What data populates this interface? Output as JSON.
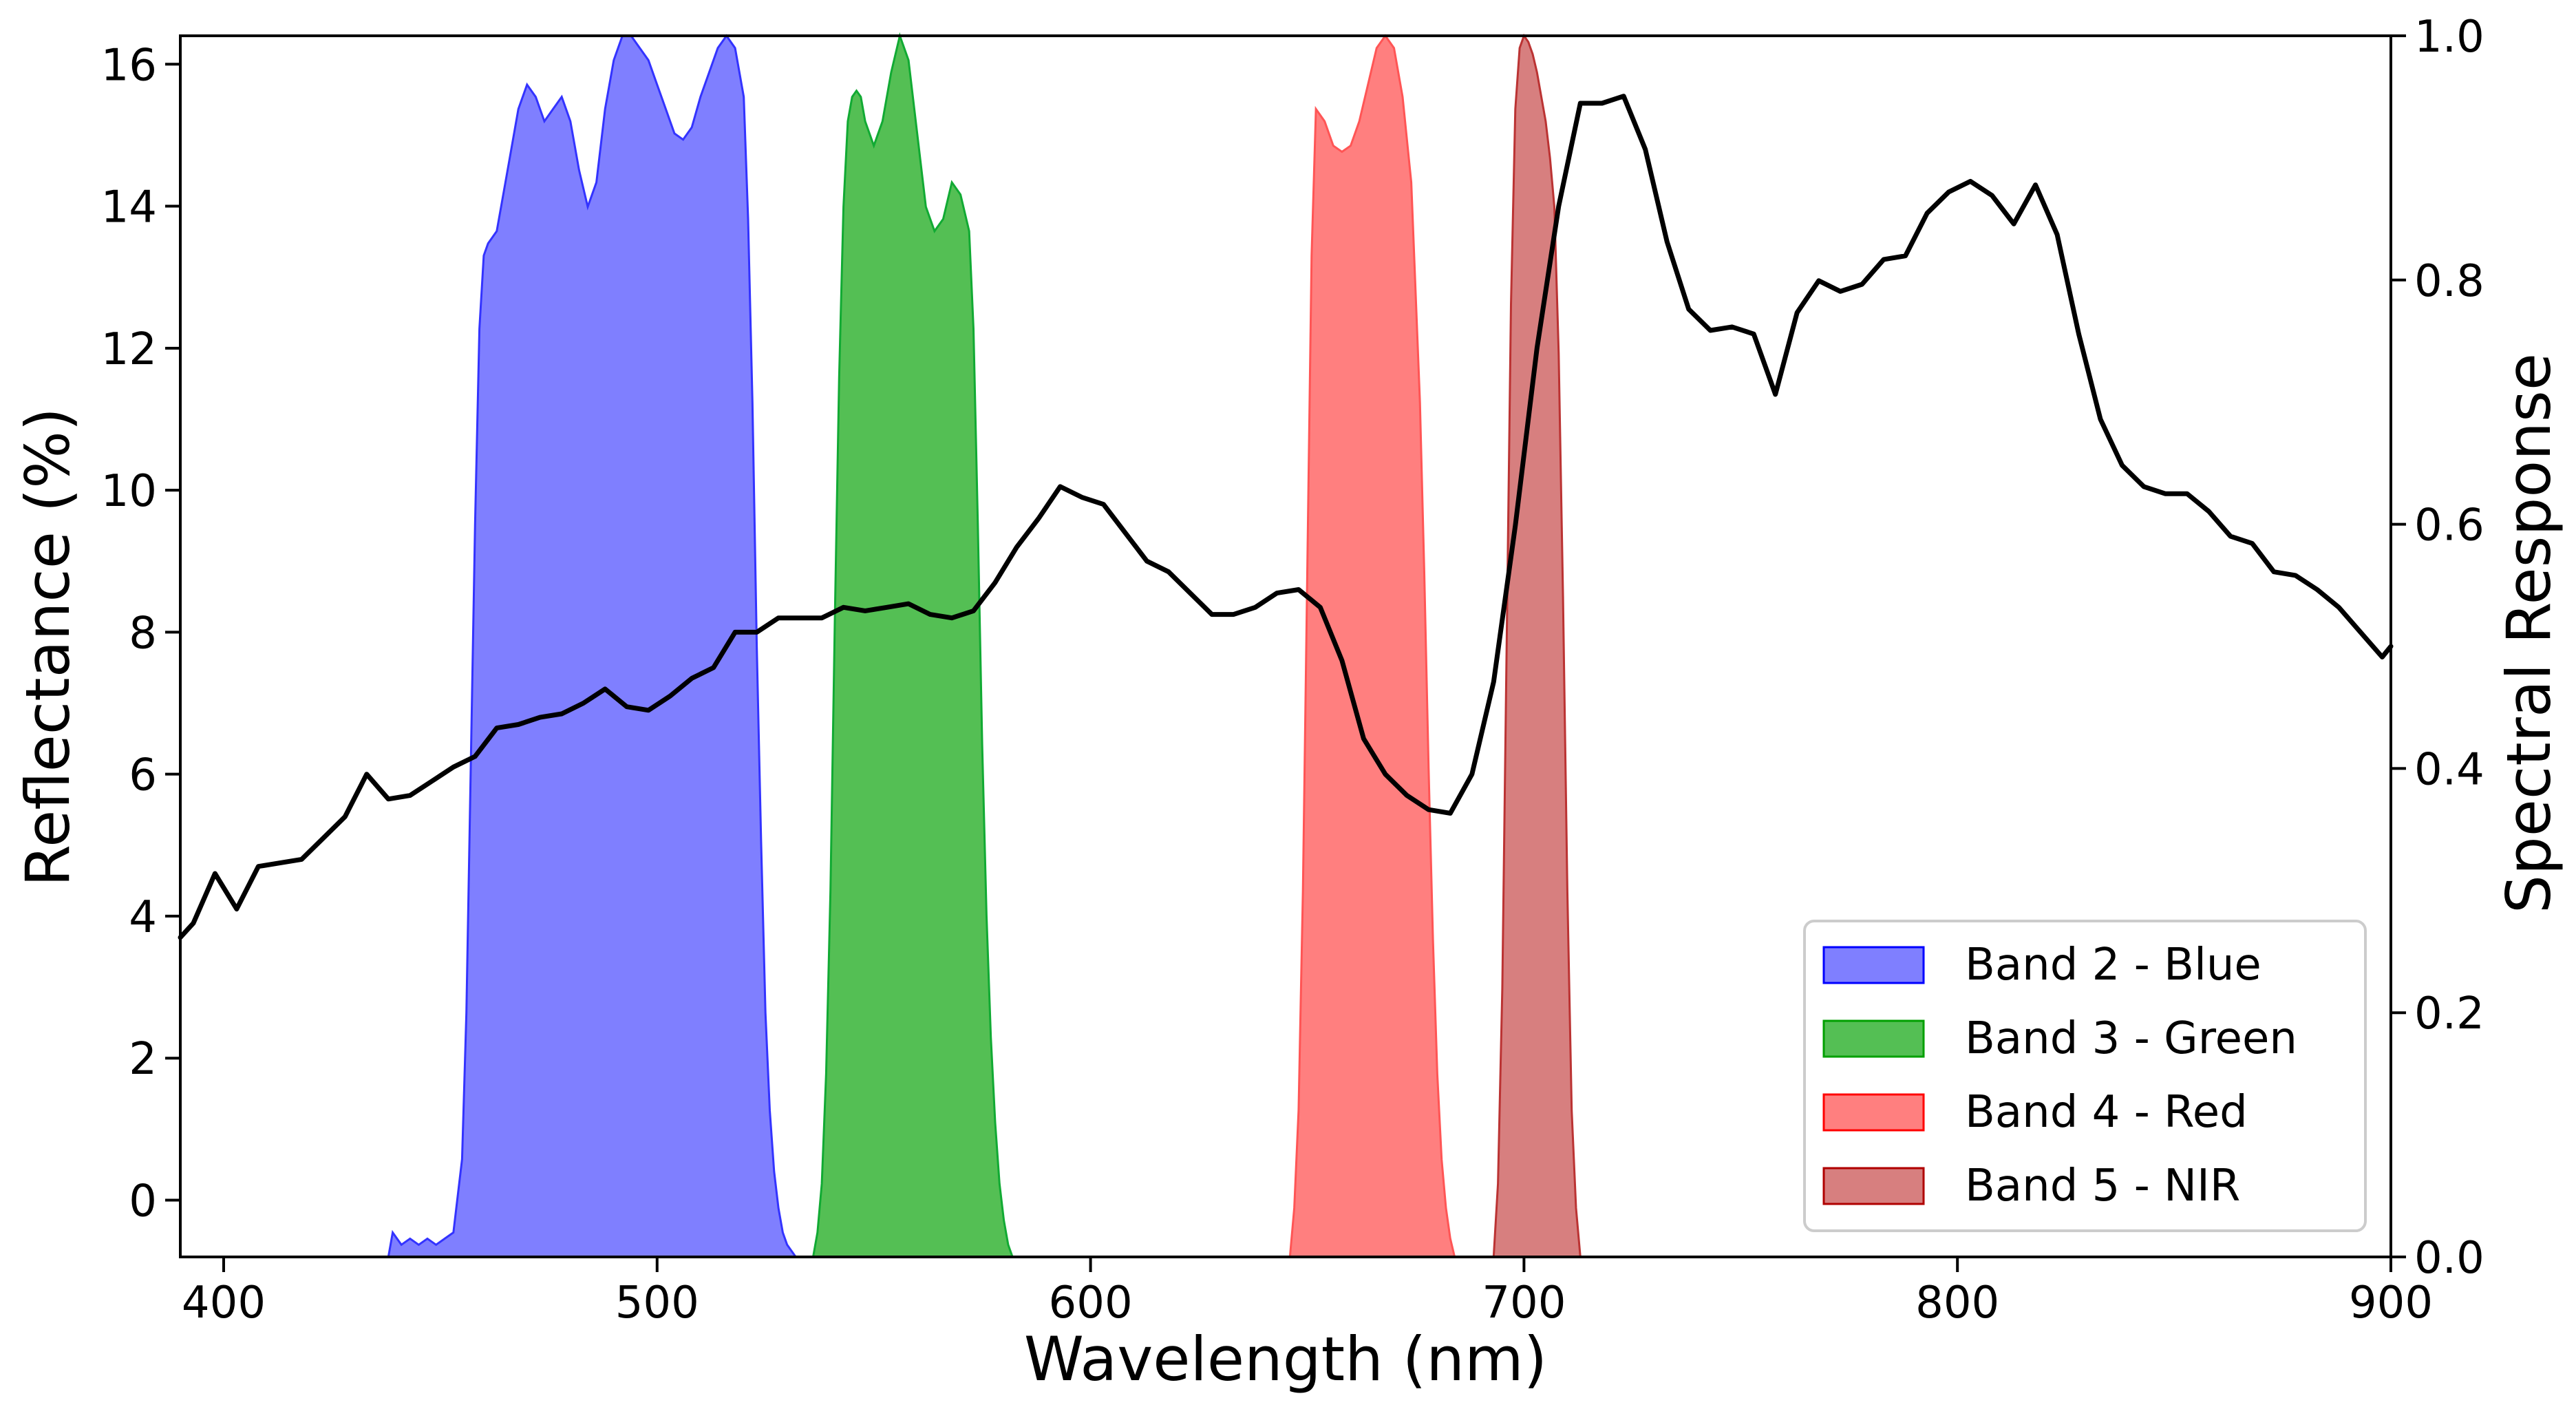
{
  "chart_data": {
    "type": "area",
    "title": "",
    "xlabel": "Wavelength (nm)",
    "ylabel_left": "Reflectance (%)",
    "ylabel_right": "Spectral Response",
    "xlim": [
      390,
      900
    ],
    "ylim_left": [
      -0.8,
      16.4
    ],
    "ylim_right": [
      0.0,
      1.0
    ],
    "grid": false,
    "legend_position": "lower-right",
    "x_ticks": [
      400,
      500,
      600,
      700,
      800,
      900
    ],
    "y_ticks_left": [
      0,
      2,
      4,
      6,
      8,
      10,
      12,
      14,
      16
    ],
    "y_ticks_right": [
      0.0,
      0.2,
      0.4,
      0.6,
      0.8,
      1.0
    ],
    "x_tick_labels": [
      "400",
      "500",
      "600",
      "700",
      "800",
      "900"
    ],
    "y_tick_labels_left": [
      "0",
      "2",
      "4",
      "6",
      "8",
      "10",
      "12",
      "14",
      "16"
    ],
    "y_tick_labels_right": [
      "0.0",
      "0.2",
      "0.4",
      "0.6",
      "0.8",
      "1.0"
    ],
    "bands": [
      {
        "name": "Band 2 - Blue",
        "color": "#0000ff",
        "opacity": 0.5,
        "edge_color": "#3333ff",
        "x": [
          438,
          439,
          441,
          443,
          445,
          447,
          449,
          451,
          453,
          455,
          456,
          457,
          458,
          459,
          460,
          461,
          462,
          463,
          464,
          466,
          468,
          470,
          472,
          474,
          476,
          478,
          480,
          482,
          484,
          486,
          488,
          490,
          492,
          494,
          496,
          498,
          500,
          502,
          504,
          506,
          508,
          510,
          512,
          514,
          516,
          518,
          520,
          521,
          522,
          523,
          524,
          525,
          526,
          527,
          528,
          529,
          530,
          531,
          532
        ],
        "y": [
          0.0,
          0.02,
          0.01,
          0.015,
          0.01,
          0.015,
          0.01,
          0.015,
          0.02,
          0.08,
          0.2,
          0.4,
          0.6,
          0.76,
          0.82,
          0.83,
          0.835,
          0.84,
          0.86,
          0.9,
          0.94,
          0.96,
          0.95,
          0.93,
          0.94,
          0.95,
          0.93,
          0.89,
          0.86,
          0.88,
          0.94,
          0.98,
          1.0,
          1.0,
          0.99,
          0.98,
          0.96,
          0.94,
          0.92,
          0.915,
          0.925,
          0.95,
          0.97,
          0.99,
          1.0,
          0.99,
          0.95,
          0.85,
          0.7,
          0.5,
          0.34,
          0.2,
          0.12,
          0.07,
          0.04,
          0.02,
          0.01,
          0.005,
          0.0
        ]
      },
      {
        "name": "Band 3 - Green",
        "color": "#00a000",
        "opacity": 0.67,
        "edge_color": "#11aa33",
        "x": [
          536,
          537,
          538,
          539,
          540,
          541,
          542,
          543,
          544,
          545,
          546,
          547,
          548,
          550,
          552,
          554,
          556,
          558,
          560,
          562,
          564,
          566,
          568,
          570,
          572,
          573,
          574,
          575,
          576,
          577,
          578,
          579,
          580,
          581,
          582
        ],
        "y": [
          0.0,
          0.02,
          0.06,
          0.15,
          0.3,
          0.52,
          0.72,
          0.86,
          0.93,
          0.95,
          0.955,
          0.95,
          0.93,
          0.91,
          0.93,
          0.97,
          1.0,
          0.98,
          0.92,
          0.86,
          0.84,
          0.85,
          0.88,
          0.87,
          0.84,
          0.76,
          0.6,
          0.42,
          0.28,
          0.18,
          0.11,
          0.06,
          0.03,
          0.01,
          0.0
        ]
      },
      {
        "name": "Band 4 - Red",
        "color": "#ff0000",
        "opacity": 0.5,
        "edge_color": "#ff5555",
        "x": [
          646,
          647,
          648,
          649,
          650,
          651,
          652,
          654,
          656,
          658,
          660,
          662,
          664,
          666,
          668,
          670,
          672,
          674,
          676,
          677,
          678,
          679,
          680,
          681,
          682,
          683,
          684
        ],
        "y": [
          0.0,
          0.04,
          0.12,
          0.3,
          0.56,
          0.82,
          0.94,
          0.93,
          0.91,
          0.905,
          0.91,
          0.93,
          0.96,
          0.99,
          1.0,
          0.99,
          0.95,
          0.88,
          0.7,
          0.56,
          0.4,
          0.26,
          0.15,
          0.08,
          0.04,
          0.015,
          0.0
        ]
      },
      {
        "name": "Band 5 - NIR",
        "color": "#b00000",
        "opacity": 0.5,
        "edge_color": "#bb3333",
        "x": [
          693,
          694,
          695,
          696,
          697,
          698,
          699,
          700,
          701,
          702,
          703,
          704,
          705,
          706,
          707,
          708,
          709,
          710,
          711,
          712,
          713
        ],
        "y": [
          0.0,
          0.06,
          0.22,
          0.5,
          0.78,
          0.94,
          0.99,
          1.0,
          0.995,
          0.985,
          0.97,
          0.95,
          0.93,
          0.9,
          0.86,
          0.74,
          0.54,
          0.3,
          0.12,
          0.04,
          0.0
        ]
      }
    ],
    "reflectance_line": {
      "name": "Reflectance",
      "color": "#000000",
      "x": [
        390,
        393,
        398,
        403,
        408,
        413,
        418,
        423,
        428,
        433,
        438,
        443,
        448,
        453,
        458,
        463,
        468,
        473,
        478,
        483,
        488,
        493,
        498,
        503,
        508,
        513,
        518,
        523,
        528,
        533,
        538,
        543,
        548,
        553,
        558,
        563,
        568,
        573,
        578,
        583,
        588,
        593,
        598,
        603,
        608,
        613,
        618,
        623,
        628,
        633,
        638,
        643,
        648,
        653,
        658,
        663,
        668,
        673,
        678,
        683,
        688,
        693,
        698,
        703,
        708,
        713,
        718,
        723,
        728,
        733,
        738,
        743,
        748,
        753,
        758,
        763,
        768,
        773,
        778,
        783,
        788,
        793,
        798,
        803,
        808,
        813,
        818,
        823,
        828,
        833,
        838,
        843,
        848,
        853,
        858,
        863,
        868,
        873,
        878,
        883,
        888,
        893,
        898,
        900
      ],
      "y": [
        3.7,
        3.9,
        4.6,
        4.1,
        4.7,
        4.75,
        4.8,
        5.1,
        5.4,
        6.0,
        5.65,
        5.7,
        5.9,
        6.1,
        6.25,
        6.65,
        6.7,
        6.8,
        6.85,
        7.0,
        7.2,
        6.95,
        6.9,
        7.1,
        7.35,
        7.5,
        8.0,
        8.0,
        8.2,
        8.2,
        8.2,
        8.35,
        8.3,
        8.35,
        8.4,
        8.25,
        8.2,
        8.3,
        8.7,
        9.2,
        9.6,
        10.05,
        9.9,
        9.8,
        9.4,
        9.0,
        8.85,
        8.55,
        8.25,
        8.25,
        8.35,
        8.55,
        8.6,
        8.35,
        7.6,
        6.5,
        6.0,
        5.7,
        5.5,
        5.45,
        6.0,
        7.3,
        9.5,
        12.0,
        14.0,
        15.45,
        15.45,
        15.55,
        14.8,
        13.5,
        12.55,
        12.25,
        12.3,
        12.2,
        11.35,
        12.5,
        12.95,
        12.8,
        12.9,
        13.25,
        13.3,
        13.9,
        14.2,
        14.35,
        14.15,
        13.75,
        14.3,
        13.6,
        12.2,
        11.0,
        10.35,
        10.05,
        9.95,
        9.95,
        9.7,
        9.35,
        9.25,
        8.85,
        8.8,
        8.6,
        8.35,
        8.0,
        7.65,
        7.8
      ]
    },
    "legend": [
      {
        "label": "Band 2 - Blue",
        "color": "#0000ff",
        "opacity": 0.5
      },
      {
        "label": "Band 3 - Green",
        "color": "#00a000",
        "opacity": 0.67
      },
      {
        "label": "Band 4 - Red",
        "color": "#ff0000",
        "opacity": 0.5
      },
      {
        "label": "Band 5 - NIR",
        "color": "#b00000",
        "opacity": 0.5
      }
    ]
  }
}
